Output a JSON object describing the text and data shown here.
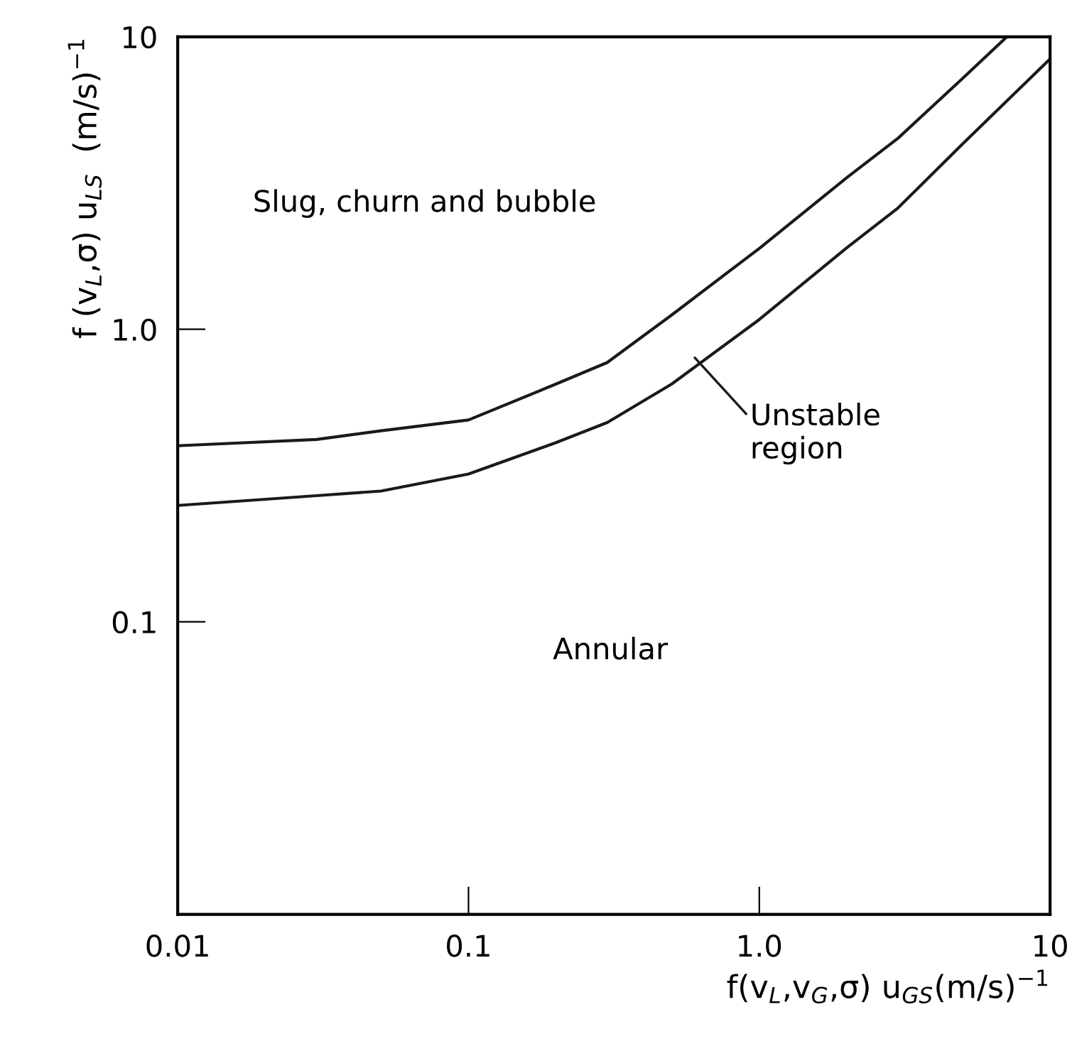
{
  "chart_data": {
    "type": "line",
    "log": "xy",
    "xlabel": "f(v$_{L}$,v$_{G}$,σ) u$_{GS}$(m/s)$^{−1}$",
    "ylabel": "f (v$_{L}$,σ) u$_{LS}$  (m/s)$^{−1}$",
    "xlim": [
      0.01,
      10
    ],
    "ylim": [
      0.01,
      10
    ],
    "xticks": [
      0.01,
      0.1,
      {
        "value": 1,
        "label": "1.0"
      },
      10
    ],
    "yticks": [
      0.1,
      {
        "value": 1,
        "label": "1.0"
      },
      10
    ],
    "grid": false,
    "marker": "none",
    "line_style": "solid",
    "series": [
      {
        "color": "#1a1a1a",
        "x": [
          0.01,
          0.03,
          0.05,
          0.1,
          0.2,
          0.3,
          0.5,
          1,
          2,
          3,
          5,
          7.1
        ],
        "values": [
          0.4,
          0.42,
          0.45,
          0.49,
          0.65,
          0.77,
          1.12,
          1.89,
          3.3,
          4.5,
          7.2,
          10
        ]
      },
      {
        "color": "#1a1a1a",
        "x": [
          0.01,
          0.03,
          0.05,
          0.1,
          0.2,
          0.3,
          0.5,
          1,
          2,
          3,
          5,
          10
        ],
        "values": [
          0.25,
          0.27,
          0.28,
          0.32,
          0.41,
          0.48,
          0.65,
          1.08,
          1.9,
          2.6,
          4.3,
          8.4
        ]
      }
    ],
    "annotations": [
      "Slug, churn and bubble",
      "Annular",
      {
        "text": "Unstable\nregion",
        "x": 0.6,
        "y": 0.8
      }
    ]
  }
}
